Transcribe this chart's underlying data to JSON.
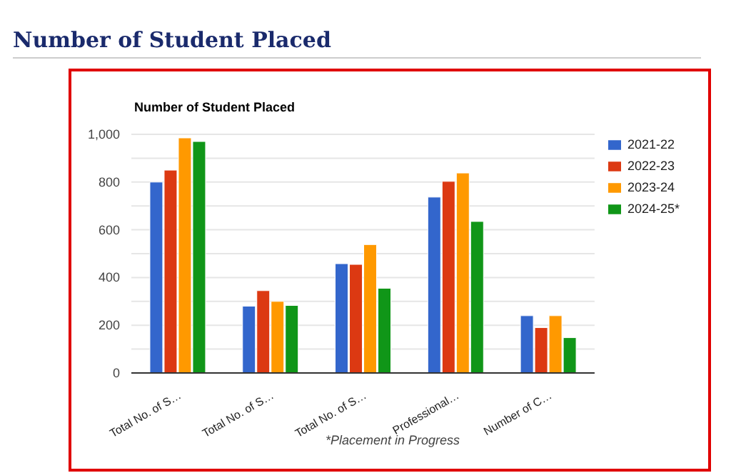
{
  "chart_data": {
    "type": "bar",
    "title": "Number of Student Placed",
    "subtitle": "Number of Student Placed",
    "xlabel": "*Placement in Progress",
    "categories": [
      "Total No. of S…",
      "Total No. of S…",
      "Total No. of S…",
      "Professional…",
      "Number of C…"
    ],
    "series": [
      {
        "name": "2021-22",
        "color": "#3366cc",
        "values": [
          800,
          280,
          458,
          737,
          240
        ]
      },
      {
        "name": "2022-23",
        "color": "#dc3912",
        "values": [
          850,
          345,
          455,
          803,
          190
        ]
      },
      {
        "name": "2023-24",
        "color": "#ff9900",
        "values": [
          985,
          300,
          538,
          838,
          240
        ]
      },
      {
        "name": "2024-25*",
        "color": "#109618",
        "values": [
          970,
          283,
          355,
          635,
          148
        ]
      }
    ],
    "ylim": [
      0,
      1000
    ],
    "yticks": [
      0,
      {
        "value": 100,
        "label": null
      },
      200,
      {
        "value": 300,
        "label": null
      },
      400,
      {
        "value": 500,
        "label": null
      },
      600,
      {
        "value": 700,
        "label": null
      },
      800,
      {
        "value": 900,
        "label": null
      },
      {
        "value": 1000,
        "label": "1,000"
      }
    ],
    "grid": "y",
    "legend": "top right"
  }
}
